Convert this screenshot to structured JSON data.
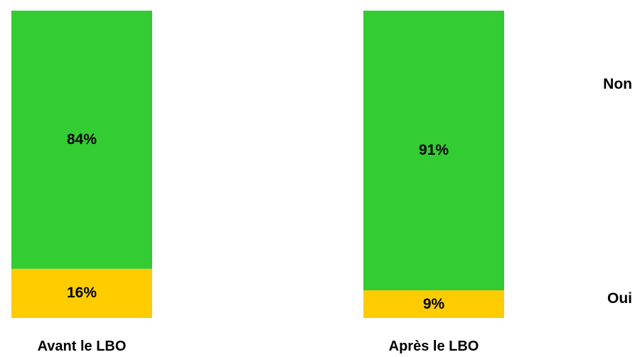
{
  "chart_data": {
    "type": "bar",
    "stacked": true,
    "percent_stacked": true,
    "categories": [
      "Avant le LBO",
      "Après le LBO"
    ],
    "series": [
      {
        "name": "Oui",
        "values": [
          16,
          9
        ],
        "labels": [
          "16%",
          "9%"
        ],
        "color": "#ffcc00"
      },
      {
        "name": "Non",
        "values": [
          84,
          91
        ],
        "labels": [
          "84%",
          "91%"
        ],
        "color": "#33cc33"
      }
    ],
    "ylim": [
      0,
      100
    ],
    "grid": false,
    "legend_position": "right"
  }
}
